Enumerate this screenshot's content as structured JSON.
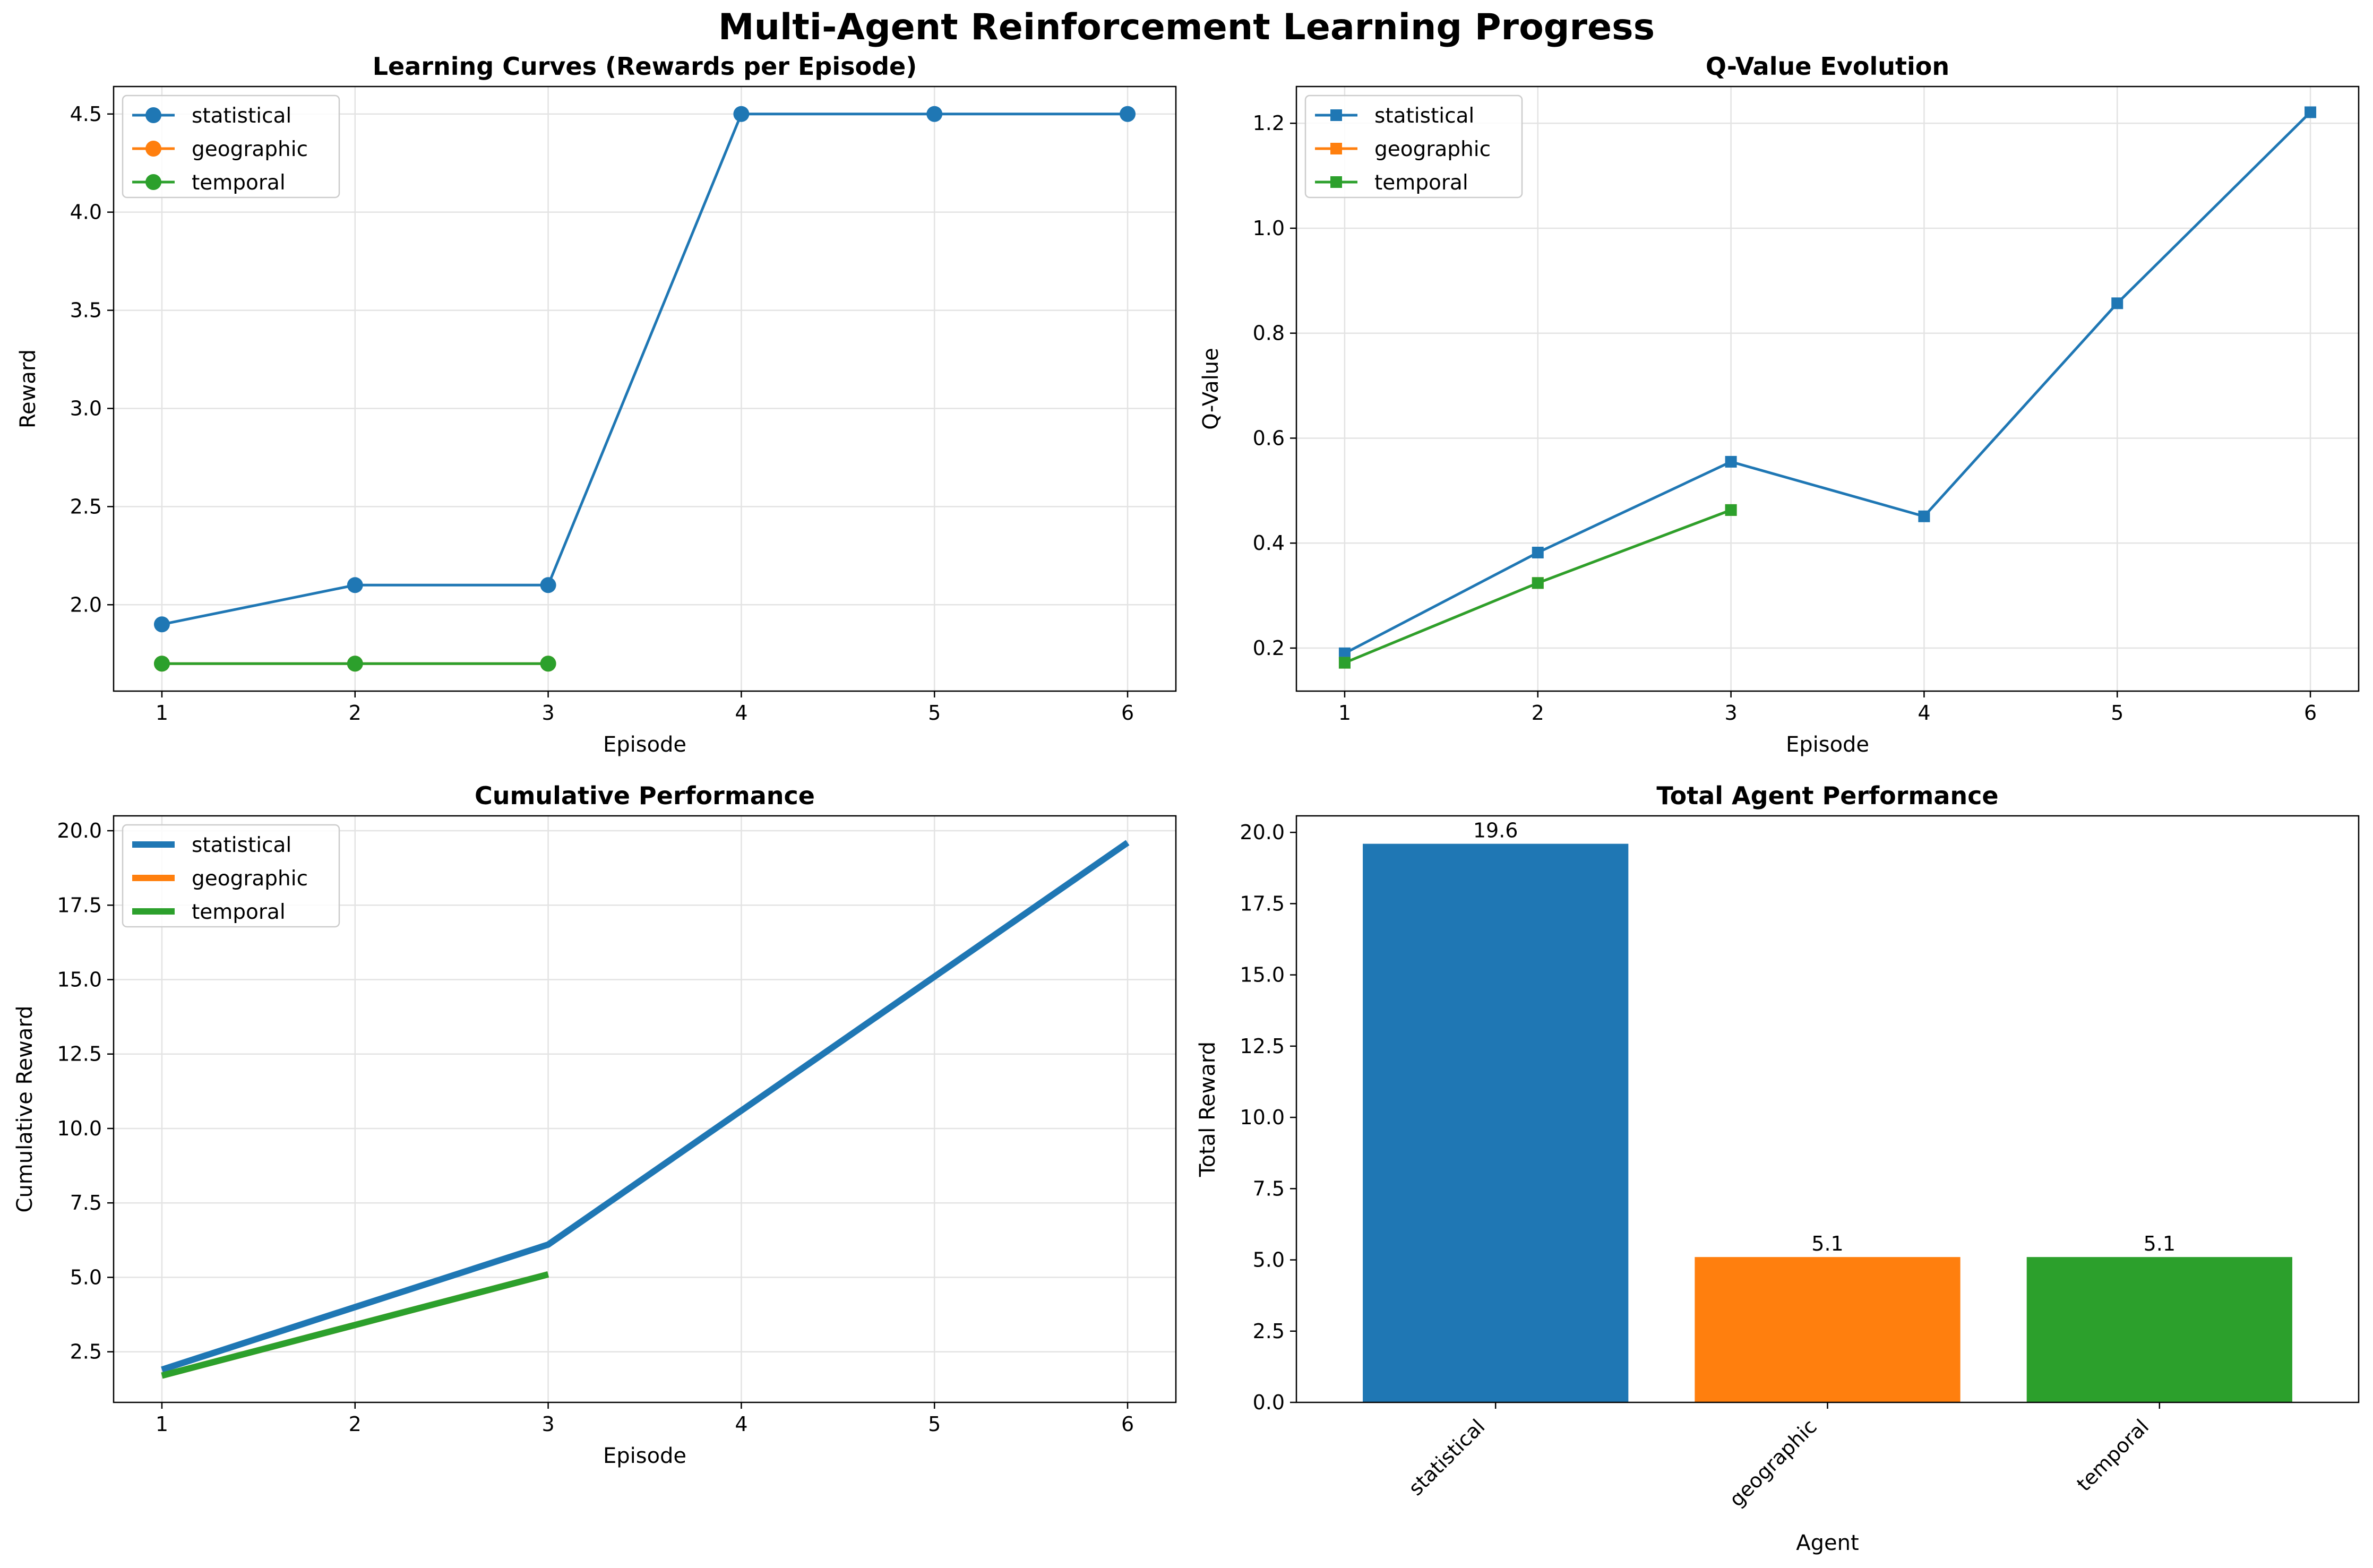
{
  "figure_title": "Multi-Agent Reinforcement Learning Progress",
  "colors": {
    "statistical": "#1f77b4",
    "geographic": "#ff7f0e",
    "temporal": "#2ca02c"
  },
  "chart_data": [
    {
      "type": "line",
      "title": "Learning Curves (Rewards per Episode)",
      "xlabel": "Episode",
      "ylabel": "Reward",
      "xlim": [
        0.75,
        6.25
      ],
      "ylim": [
        1.56,
        4.64
      ],
      "xticks": [
        1,
        2,
        3,
        4,
        5,
        6
      ],
      "yticks": [
        2.0,
        2.5,
        3.0,
        3.5,
        4.0,
        4.5
      ],
      "ytick_labels": [
        "2.0",
        "2.5",
        "3.0",
        "3.5",
        "4.0",
        "4.5"
      ],
      "marker": "circle",
      "line_width": "normal",
      "grid": true,
      "legend": "top-left",
      "series": [
        {
          "name": "statistical",
          "x": [
            1,
            2,
            3,
            4,
            5,
            6
          ],
          "values": [
            1.9,
            2.1,
            2.1,
            4.5,
            4.5,
            4.5
          ]
        },
        {
          "name": "geographic",
          "x": [
            1,
            2,
            3
          ],
          "values": [
            1.7,
            1.7,
            1.7
          ]
        },
        {
          "name": "temporal",
          "x": [
            1,
            2,
            3
          ],
          "values": [
            1.7,
            1.7,
            1.7
          ]
        }
      ]
    },
    {
      "type": "line",
      "title": "Q-Value Evolution",
      "xlabel": "Episode",
      "ylabel": "Q-Value",
      "xlim": [
        0.75,
        6.25
      ],
      "ylim": [
        0.118,
        1.27
      ],
      "xticks": [
        1,
        2,
        3,
        4,
        5,
        6
      ],
      "yticks": [
        0.2,
        0.4,
        0.6,
        0.8,
        1.0,
        1.2
      ],
      "ytick_labels": [
        "0.2",
        "0.4",
        "0.6",
        "0.8",
        "1.0",
        "1.2"
      ],
      "marker": "square",
      "line_width": "normal",
      "grid": true,
      "legend": "top-left",
      "series": [
        {
          "name": "statistical",
          "x": [
            1,
            2,
            3,
            4,
            5,
            6
          ],
          "values": [
            0.19,
            0.382,
            0.555,
            0.451,
            0.857,
            1.221
          ]
        },
        {
          "name": "geographic",
          "x": [
            1,
            2,
            3
          ],
          "values": [
            0.172,
            0.324,
            0.463
          ]
        },
        {
          "name": "temporal",
          "x": [
            1,
            2,
            3
          ],
          "values": [
            0.172,
            0.324,
            0.463
          ]
        }
      ]
    },
    {
      "type": "line",
      "title": "Cumulative Performance",
      "xlabel": "Episode",
      "ylabel": "Cumulative Reward",
      "xlim": [
        0.75,
        6.25
      ],
      "ylim": [
        0.8,
        20.5
      ],
      "xticks": [
        1,
        2,
        3,
        4,
        5,
        6
      ],
      "yticks": [
        2.5,
        5.0,
        7.5,
        10.0,
        12.5,
        15.0,
        17.5,
        20.0
      ],
      "ytick_labels": [
        "2.5",
        "5.0",
        "7.5",
        "10.0",
        "12.5",
        "15.0",
        "17.5",
        "20.0"
      ],
      "marker": "none",
      "line_width": "thick",
      "grid": true,
      "legend": "top-left",
      "series": [
        {
          "name": "statistical",
          "x": [
            1,
            2,
            3,
            4,
            5,
            6
          ],
          "values": [
            1.9,
            4.0,
            6.1,
            10.6,
            15.1,
            19.6
          ]
        },
        {
          "name": "geographic",
          "x": [
            1,
            2,
            3
          ],
          "values": [
            1.7,
            3.4,
            5.1
          ]
        },
        {
          "name": "temporal",
          "x": [
            1,
            2,
            3
          ],
          "values": [
            1.7,
            3.4,
            5.1
          ]
        }
      ]
    },
    {
      "type": "bar",
      "title": "Total Agent Performance",
      "xlabel": "Agent",
      "ylabel": "Total Reward",
      "ylim": [
        0,
        20.58
      ],
      "yticks": [
        0.0,
        2.5,
        5.0,
        7.5,
        10.0,
        12.5,
        15.0,
        17.5,
        20.0
      ],
      "ytick_labels": [
        "0.0",
        "2.5",
        "5.0",
        "7.5",
        "10.0",
        "12.5",
        "15.0",
        "17.5",
        "20.0"
      ],
      "categories": [
        "statistical",
        "geographic",
        "temporal"
      ],
      "values": [
        19.6,
        5.1,
        5.1
      ],
      "value_labels": [
        "19.6",
        "5.1",
        "5.1"
      ],
      "grid": false
    }
  ]
}
